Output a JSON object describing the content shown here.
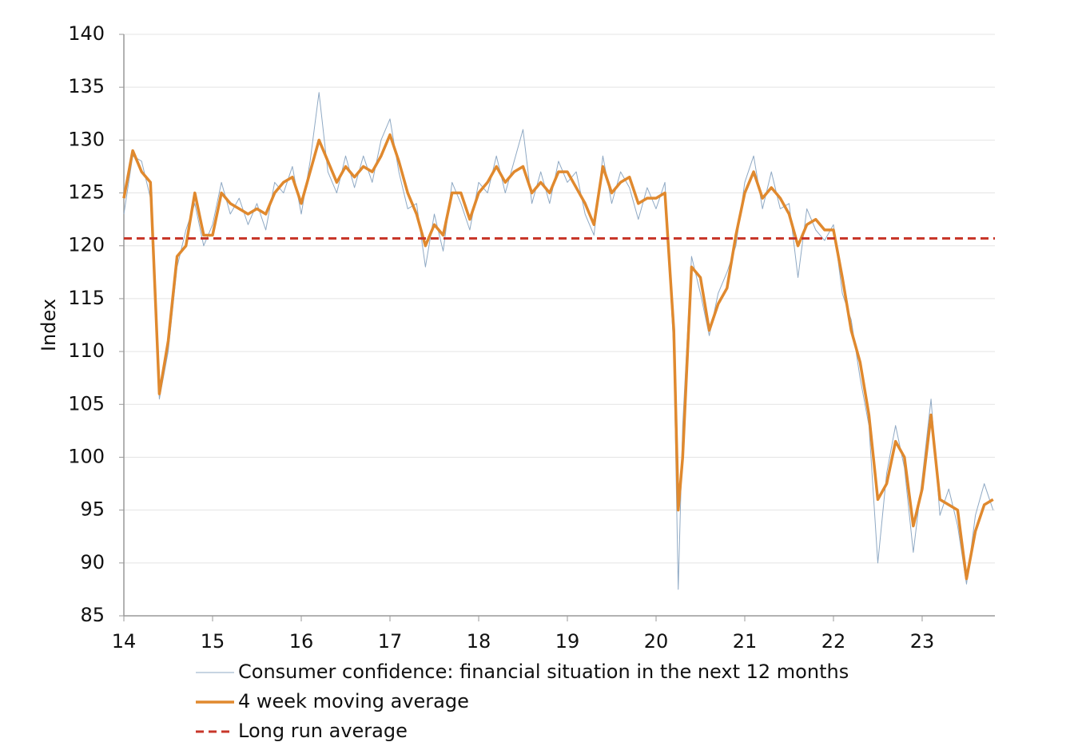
{
  "chart_data": {
    "type": "line",
    "y_label": "Index",
    "x": [
      14.0,
      14.1,
      14.2,
      14.3,
      14.4,
      14.5,
      14.6,
      14.7,
      14.8,
      14.9,
      15.0,
      15.1,
      15.2,
      15.3,
      15.4,
      15.5,
      15.6,
      15.7,
      15.8,
      15.9,
      16.0,
      16.1,
      16.2,
      16.3,
      16.4,
      16.5,
      16.6,
      16.7,
      16.8,
      16.9,
      17.0,
      17.1,
      17.2,
      17.3,
      17.4,
      17.5,
      17.6,
      17.7,
      17.8,
      17.9,
      18.0,
      18.1,
      18.2,
      18.3,
      18.4,
      18.5,
      18.6,
      18.7,
      18.8,
      18.9,
      19.0,
      19.1,
      19.2,
      19.3,
      19.4,
      19.5,
      19.6,
      19.7,
      19.8,
      19.9,
      20.0,
      20.1,
      20.2,
      20.25,
      20.3,
      20.4,
      20.5,
      20.6,
      20.7,
      20.8,
      20.9,
      21.0,
      21.1,
      21.2,
      21.3,
      21.4,
      21.5,
      21.6,
      21.7,
      21.8,
      21.9,
      22.0,
      22.1,
      22.2,
      22.3,
      22.4,
      22.5,
      22.6,
      22.7,
      22.8,
      22.9,
      23.0,
      23.1,
      23.2,
      23.3,
      23.4,
      23.5,
      23.6,
      23.7,
      23.8
    ],
    "series": [
      {
        "name": "Consumer confidence: financial situation in the next 12 months",
        "color": "#8fa9c4",
        "width": 1,
        "values": [
          123,
          128.5,
          128,
          124.5,
          105.5,
          110,
          118,
          121.5,
          124,
          120,
          122,
          126,
          123,
          124.5,
          122,
          124,
          121.5,
          126,
          125,
          127.5,
          123,
          128,
          134.5,
          127,
          125,
          128.5,
          125.5,
          128.5,
          126,
          130,
          132,
          127,
          123.5,
          124,
          118,
          123,
          119.5,
          126,
          124,
          121.5,
          126,
          125,
          128.5,
          125,
          128,
          131,
          124,
          127,
          124,
          128,
          126,
          127,
          123,
          121,
          128.5,
          124,
          127,
          125.5,
          122.5,
          125.5,
          123.5,
          126,
          110,
          87.5,
          103,
          119,
          115.5,
          111.5,
          115.5,
          117.5,
          120,
          126,
          128.5,
          123.5,
          127,
          123.5,
          124,
          117,
          123.5,
          121.5,
          120.5,
          122,
          115.5,
          113,
          107.5,
          103,
          90,
          98.5,
          103,
          99,
          91,
          98,
          105.5,
          94.5,
          97,
          93.5,
          88,
          94.5,
          97.5,
          95
        ]
      },
      {
        "name": "4 week moving average",
        "color": "#e0892e",
        "width": 3.5,
        "values": [
          124.5,
          129,
          127,
          126,
          106,
          111,
          119,
          120,
          125,
          121,
          121,
          125,
          124,
          123.5,
          123,
          123.5,
          123,
          125,
          126,
          126.5,
          124,
          127,
          130,
          128,
          126,
          127.5,
          126.5,
          127.5,
          127,
          128.5,
          130.5,
          128,
          125,
          123,
          120,
          122,
          121,
          125,
          125,
          122.5,
          125,
          126,
          127.5,
          126,
          127,
          127.5,
          125,
          126,
          125,
          127,
          127,
          125.5,
          124,
          122,
          127.5,
          125,
          126,
          126.5,
          124,
          124.5,
          124.5,
          125,
          112,
          95,
          100,
          118,
          117,
          112,
          114.5,
          116,
          121,
          125,
          127,
          124.5,
          125.5,
          124.5,
          123,
          120,
          122,
          122.5,
          121.5,
          121.5,
          117,
          112,
          109,
          104,
          96,
          97.5,
          101.5,
          100,
          93.5,
          97,
          104,
          96,
          95.5,
          95,
          88.5,
          93,
          95.5,
          96
        ]
      },
      {
        "name": "Long run average",
        "color": "#c8372a",
        "width": 3,
        "dashed": true,
        "value": 120.7
      }
    ],
    "xlim": [
      14,
      23.82
    ],
    "xticks": [
      14,
      15,
      16,
      17,
      18,
      19,
      20,
      21,
      22,
      23
    ],
    "ylim": [
      85,
      140
    ],
    "yticks": [
      85,
      90,
      95,
      100,
      105,
      110,
      115,
      120,
      125,
      130,
      135,
      140
    ],
    "grid": true,
    "legend": "bottom"
  }
}
